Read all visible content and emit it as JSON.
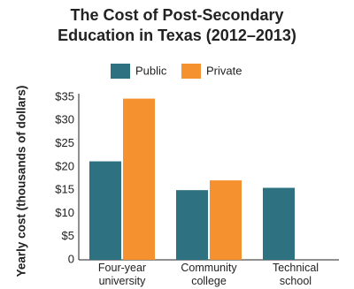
{
  "chart_data": {
    "type": "bar",
    "title": "The Cost of Post-Secondary Education in Texas (2012–2013)",
    "y_label": "Yearly cost (thousands of dollars)",
    "categories": [
      "Four-year university",
      "Community college",
      "Technical school"
    ],
    "series": [
      {
        "name": "Public",
        "color": "#2e7180",
        "values": [
          21.2,
          15,
          15.5
        ]
      },
      {
        "name": "Private",
        "color": "#f5922f",
        "values": [
          34.7,
          17.1,
          null
        ]
      }
    ],
    "ylim": [
      0,
      35
    ],
    "yticks": [
      {
        "value": 0,
        "label": "0"
      },
      {
        "value": 5,
        "label": "$5"
      },
      {
        "value": 10,
        "label": "$10"
      },
      {
        "value": 15,
        "label": "$15"
      },
      {
        "value": 20,
        "label": "$20"
      },
      {
        "value": 25,
        "label": "$25"
      },
      {
        "value": 30,
        "label": "$30"
      },
      {
        "value": 35,
        "label": "$35"
      }
    ],
    "grid": false
  }
}
